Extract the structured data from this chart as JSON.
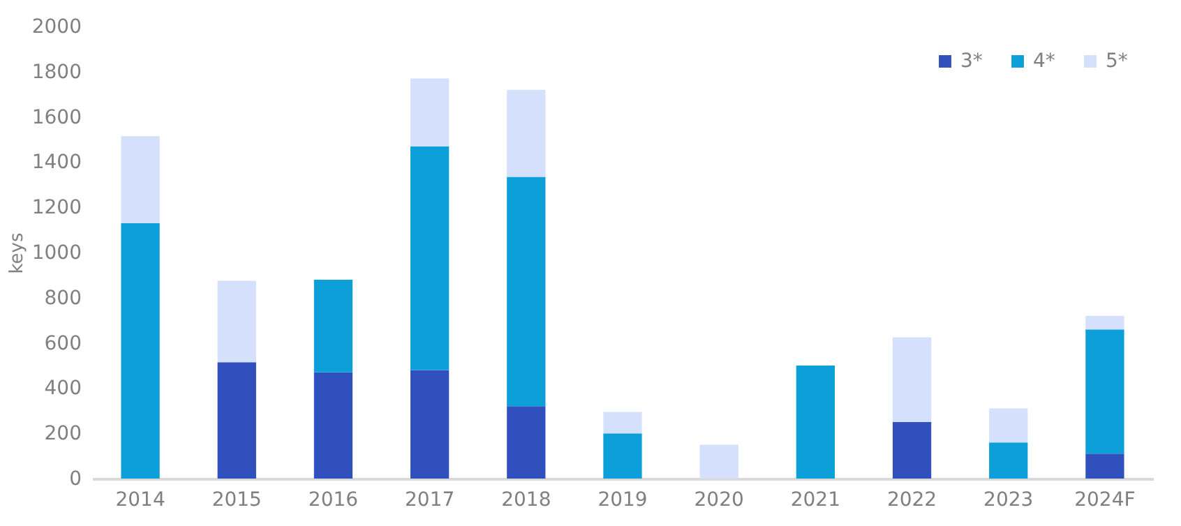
{
  "chart_data": {
    "type": "bar",
    "stacked": true,
    "ylabel": "keys",
    "categories": [
      "2014",
      "2015",
      "2016",
      "2017",
      "2018",
      "2019",
      "2020",
      "2021",
      "2022",
      "2023",
      "2024F"
    ],
    "series": [
      {
        "name": "3*",
        "color": "#3050bd",
        "values": [
          0,
          515,
          470,
          480,
          320,
          0,
          0,
          0,
          250,
          0,
          110
        ]
      },
      {
        "name": "4*",
        "color": "#0d9fd8",
        "values": [
          1130,
          0,
          410,
          990,
          1015,
          200,
          0,
          500,
          0,
          160,
          550
        ]
      },
      {
        "name": "5*",
        "color": "#d4e0fc",
        "values": [
          385,
          360,
          0,
          300,
          385,
          95,
          150,
          0,
          375,
          150,
          60
        ]
      }
    ],
    "ylim": [
      0,
      2000
    ],
    "yticks": [
      0,
      200,
      400,
      600,
      800,
      1000,
      1200,
      1400,
      1600,
      1800,
      2000
    ],
    "grid": false,
    "legend": "top right"
  }
}
